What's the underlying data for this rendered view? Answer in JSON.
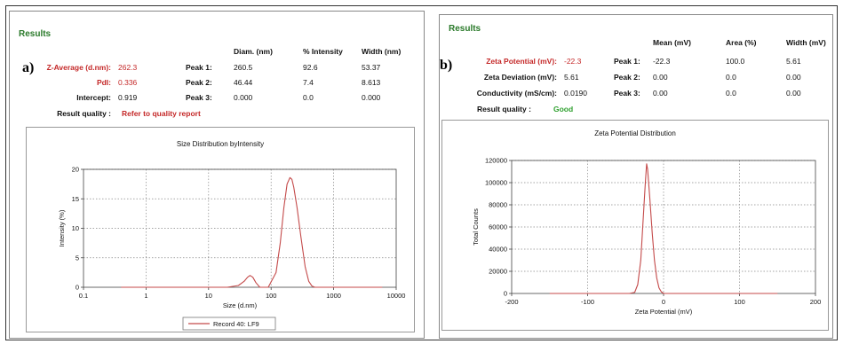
{
  "panel_a": {
    "heading": "Results",
    "letter": "a)",
    "col_headers": [
      "Diam. (nm)",
      "% Intensity",
      "Width (nm)"
    ],
    "z_average_label": "Z-Average (d.nm):",
    "z_average_value": "262.3",
    "pdi_label": "PdI:",
    "pdi_value": "0.336",
    "intercept_label": "Intercept:",
    "intercept_value": "0.919",
    "quality_label": "Result quality :",
    "quality_value": "Refer to quality report",
    "peaks": [
      {
        "label": "Peak 1:",
        "c1": "260.5",
        "c2": "92.6",
        "c3": "53.37"
      },
      {
        "label": "Peak 2:",
        "c1": "46.44",
        "c2": "7.4",
        "c3": "8.613"
      },
      {
        "label": "Peak 3:",
        "c1": "0.000",
        "c2": "0.0",
        "c3": "0.000"
      }
    ],
    "legend_label": "Record 40: LF9"
  },
  "panel_b": {
    "heading": "Results",
    "letter": "b)",
    "col_headers": [
      "Mean (mV)",
      "Area (%)",
      "Width (mV)"
    ],
    "zeta_label": "Zeta Potential (mV):",
    "zeta_value": "-22.3",
    "deviation_label": "Zeta Deviation (mV):",
    "deviation_value": "5.61",
    "conductivity_label": "Conductivity (mS/cm):",
    "conductivity_value": "0.0190",
    "quality_label": "Result quality :",
    "quality_value": "Good",
    "peaks": [
      {
        "label": "Peak 1:",
        "c1": "-22.3",
        "c2": "100.0",
        "c3": "5.61"
      },
      {
        "label": "Peak 2:",
        "c1": "0.00",
        "c2": "0.0",
        "c3": "0.00"
      },
      {
        "label": "Peak 3:",
        "c1": "0.00",
        "c2": "0.0",
        "c3": "0.00"
      }
    ]
  },
  "colors": {
    "curve": "#c44a4a",
    "results_green": "#2a7a2a",
    "label_red": "#c42828"
  },
  "chart_data": [
    {
      "type": "line",
      "title": "Size Distribution byIntensity",
      "xlabel": "Size (d.nm)",
      "ylabel": "Intensity (%)",
      "xscale": "log",
      "xlim": [
        0.1,
        10000
      ],
      "ylim": [
        0,
        20
      ],
      "xticks": [
        0.1,
        1,
        10,
        100,
        1000,
        10000
      ],
      "xtick_labels": [
        "0.1",
        "1",
        "10",
        "100",
        "1000",
        "10000"
      ],
      "yticks": [
        0,
        5,
        10,
        15,
        20
      ],
      "ytick_labels": [
        "0",
        "5",
        "10",
        "15",
        "20"
      ],
      "grid": true,
      "legend": "bottom",
      "series": [
        {
          "name": "Record 40: LF9",
          "x": [
            0.4,
            20,
            30,
            37,
            42,
            46,
            51,
            57,
            66,
            90,
            120,
            140,
            160,
            180,
            200,
            215,
            230,
            260,
            300,
            350,
            400,
            450,
            500,
            700,
            6000
          ],
          "y": [
            0,
            0,
            0.3,
            1.0,
            1.7,
            2.0,
            1.7,
            0.8,
            0,
            0,
            2.5,
            7.5,
            13.5,
            17.5,
            18.6,
            18.3,
            17.0,
            13.5,
            8.5,
            3.5,
            1.0,
            0.2,
            0,
            0,
            0
          ]
        }
      ]
    },
    {
      "type": "line",
      "title": "Zeta Potential Distribution",
      "xlabel": "Zeta Potential (mV)",
      "ylabel": "Total Counts",
      "xlim": [
        -200,
        200
      ],
      "ylim": [
        0,
        120000
      ],
      "xticks": [
        -200,
        -100,
        0,
        100,
        200
      ],
      "xtick_labels": [
        "-200",
        "-100",
        "0",
        "100",
        "200"
      ],
      "yticks": [
        0,
        20000,
        40000,
        60000,
        80000,
        100000,
        120000
      ],
      "ytick_labels": [
        "0",
        "20000",
        "40000",
        "60000",
        "80000",
        "100000",
        "120000"
      ],
      "grid": true,
      "series": [
        {
          "name": "",
          "x": [
            -150,
            -45,
            -38,
            -34,
            -30,
            -27,
            -24,
            -22.3,
            -21,
            -18,
            -15,
            -12,
            -9,
            -6,
            -3,
            0,
            150
          ],
          "y": [
            0,
            0,
            1000,
            8000,
            30000,
            65000,
            100000,
            117000,
            112000,
            85000,
            55000,
            30000,
            14000,
            5000,
            1500,
            0,
            0
          ]
        }
      ]
    }
  ]
}
